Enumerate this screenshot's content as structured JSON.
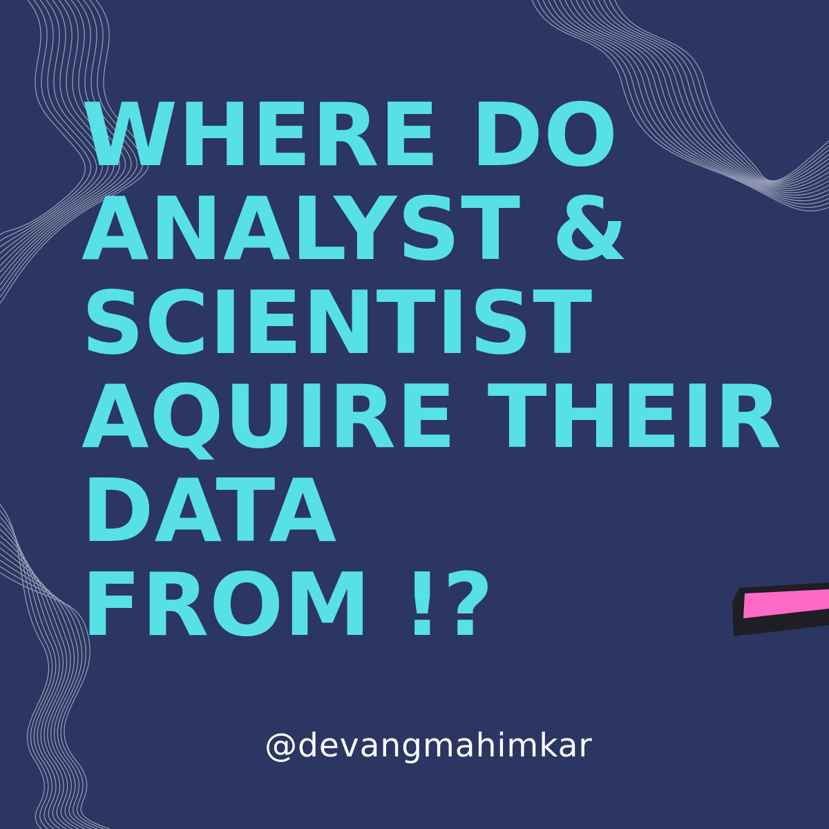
{
  "poster": {
    "headline_lines": [
      "WHERE DO",
      "ANALYST &",
      "SCIENTIST",
      "AQUIRE THEIR",
      "DATA",
      "FROM !?"
    ],
    "handle": "@devangmahimkar"
  },
  "colors": {
    "background": "#2b3662",
    "headline": "#57e1e6",
    "handle": "#ffffff",
    "contour_lines": "#b7bccd",
    "marker_fill": "#ff6ac8",
    "marker_shadow": "#1e1e24"
  },
  "decorations": {
    "icons": [
      "contour-lines-top-left",
      "contour-lines-top-right",
      "contour-lines-bottom-left",
      "highlighter-marker-icon"
    ]
  }
}
